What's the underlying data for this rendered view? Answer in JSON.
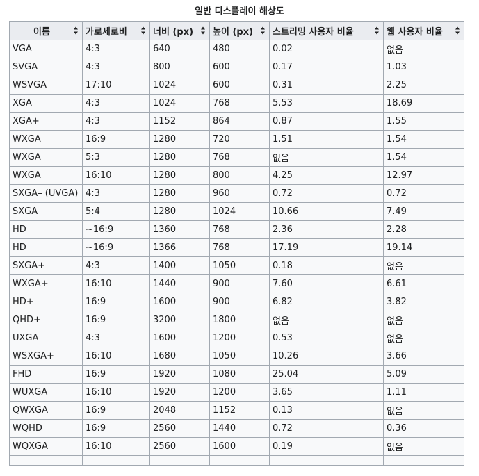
{
  "table": {
    "caption": "일반 디스플레이 해상도",
    "headers": [
      "이름",
      "가로세로비",
      "너비 (px)",
      "높이 (px)",
      "스트리밍 사용자 비율",
      "웹 사용자 비율"
    ],
    "rows": [
      [
        "VGA",
        "4:3",
        "640",
        "480",
        "0.02",
        "없음"
      ],
      [
        "SVGA",
        "4:3",
        "800",
        "600",
        "0.17",
        "1.03"
      ],
      [
        "WSVGA",
        "17:10",
        "1024",
        "600",
        "0.31",
        "2.25"
      ],
      [
        "XGA",
        "4:3",
        "1024",
        "768",
        "5.53",
        "18.69"
      ],
      [
        "XGA+",
        "4:3",
        "1152",
        "864",
        "0.87",
        "1.55"
      ],
      [
        "WXGA",
        "16:9",
        "1280",
        "720",
        "1.51",
        "1.54"
      ],
      [
        "WXGA",
        "5:3",
        "1280",
        "768",
        "없음",
        "1.54"
      ],
      [
        "WXGA",
        "16:10",
        "1280",
        "800",
        "4.25",
        "12.97"
      ],
      [
        "SXGA– (UVGA)",
        "4:3",
        "1280",
        "960",
        "0.72",
        "0.72"
      ],
      [
        "SXGA",
        "5:4",
        "1280",
        "1024",
        "10.66",
        "7.49"
      ],
      [
        "HD",
        "~16:9",
        "1360",
        "768",
        "2.36",
        "2.28"
      ],
      [
        "HD",
        "~16:9",
        "1366",
        "768",
        "17.19",
        "19.14"
      ],
      [
        "SXGA+",
        "4:3",
        "1400",
        "1050",
        "0.18",
        "없음"
      ],
      [
        "WXGA+",
        "16:10",
        "1440",
        "900",
        "7.60",
        "6.61"
      ],
      [
        "HD+",
        "16:9",
        "1600",
        "900",
        "6.82",
        "3.82"
      ],
      [
        "QHD+",
        "16:9",
        "3200",
        "1800",
        "없음",
        "없음"
      ],
      [
        "UXGA",
        "4:3",
        "1600",
        "1200",
        "0.53",
        "없음"
      ],
      [
        "WSXGA+",
        "16:10",
        "1680",
        "1050",
        "10.26",
        "3.66"
      ],
      [
        "FHD",
        "16:9",
        "1920",
        "1080",
        "25.04",
        "5.09"
      ],
      [
        "WUXGA",
        "16:10",
        "1920",
        "1200",
        "3.65",
        "1.11"
      ],
      [
        "QWXGA",
        "16:9",
        "2048",
        "1152",
        "0.13",
        "없음"
      ],
      [
        "WQHD",
        "16:9",
        "2560",
        "1440",
        "0.72",
        "0.36"
      ],
      [
        "WQXGA",
        "16:10",
        "2560",
        "1600",
        "0.19",
        "없음"
      ]
    ]
  }
}
